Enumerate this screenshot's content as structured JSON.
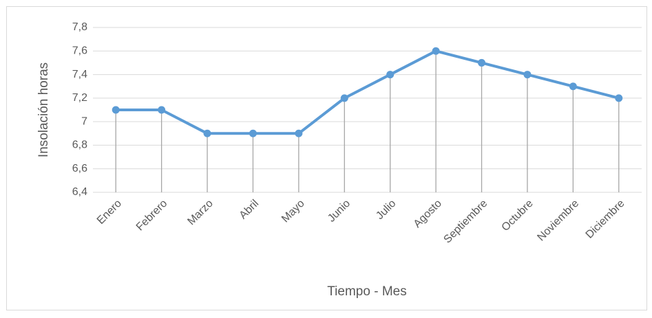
{
  "chart_data": {
    "type": "line",
    "categories": [
      "Enero",
      "Febrero",
      "Marzo",
      "Abril",
      "Mayo",
      "Junio",
      "Julio",
      "Agosto",
      "Septiembre",
      "Octubre",
      "Noviembre",
      "Diciembre"
    ],
    "values": [
      7.1,
      7.1,
      6.9,
      6.9,
      6.9,
      7.2,
      7.4,
      7.6,
      7.5,
      7.4,
      7.3,
      7.2
    ],
    "color": "#5b9bd5",
    "drop_lines": true,
    "ylim": [
      6.4,
      7.8
    ],
    "yticks": [
      {
        "value": 6.4,
        "label": "6,4"
      },
      {
        "value": 6.6,
        "label": "6,6"
      },
      {
        "value": 6.8,
        "label": "6,8"
      },
      7,
      {
        "value": 7.2,
        "label": "7,2"
      },
      {
        "value": 7.4,
        "label": "7,4"
      },
      {
        "value": 7.6,
        "label": "7,6"
      },
      {
        "value": 7.8,
        "label": "7,8"
      }
    ],
    "grid": true,
    "xlabel": "Tiempo - Mes",
    "ylabel": "Insolación horas"
  }
}
